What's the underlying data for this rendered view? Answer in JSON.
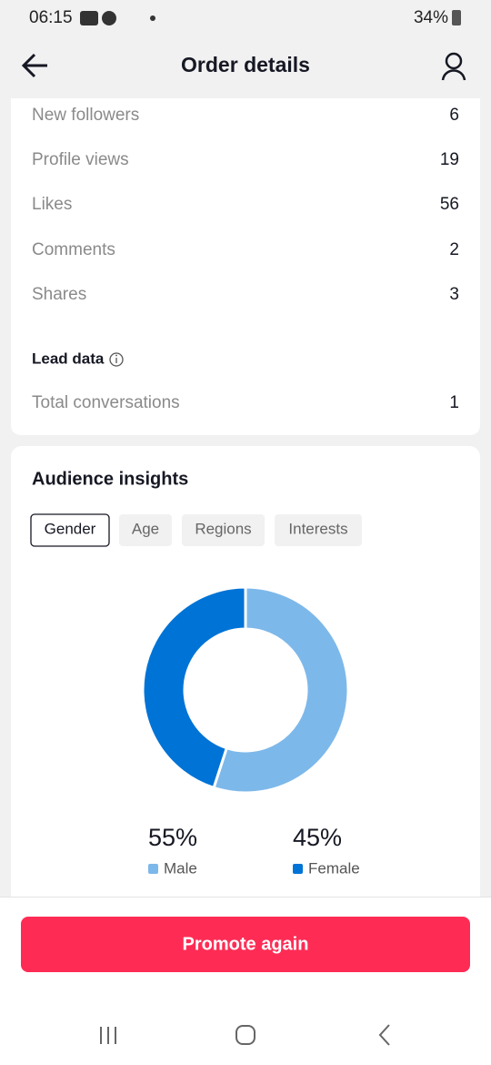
{
  "status_bar": {
    "time": "06:15",
    "battery": "34%"
  },
  "header": {
    "title": "Order details"
  },
  "metrics": [
    {
      "label": "New followers",
      "value": 6
    },
    {
      "label": "Profile views",
      "value": 19
    },
    {
      "label": "Likes",
      "value": 56
    },
    {
      "label": "Comments",
      "value": 2
    },
    {
      "label": "Shares",
      "value": 3
    }
  ],
  "lead_data": {
    "title": "Lead data",
    "rows": [
      {
        "label": "Total conversations",
        "value": 1
      }
    ]
  },
  "audience": {
    "title": "Audience insights",
    "tabs": [
      "Gender",
      "Age",
      "Regions",
      "Interests"
    ]
  },
  "chart_data": {
    "type": "pie",
    "donut": true,
    "categories": [
      "Male",
      "Female"
    ],
    "values": [
      55,
      45
    ],
    "value_labels": [
      "55%",
      "45%"
    ],
    "colors": [
      "#7db8ea",
      "#0073d6"
    ]
  },
  "footer": {
    "button": "Promote again"
  }
}
